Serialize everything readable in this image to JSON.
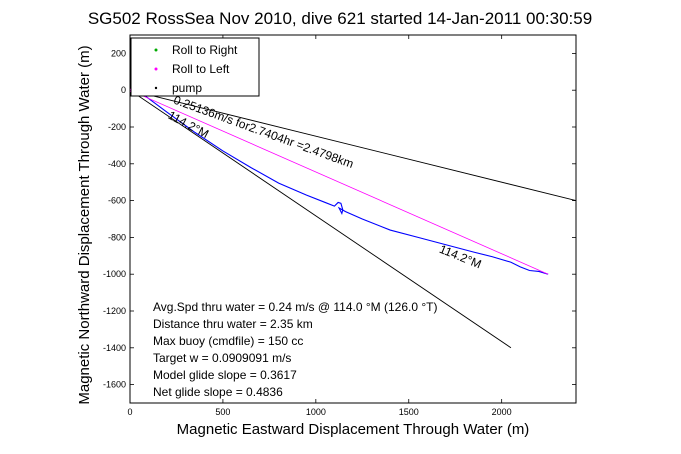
{
  "chart_data": {
    "type": "line",
    "title": "SG502 RossSea Nov 2010, dive 621 started 14-Jan-2011 00:30:59",
    "xlabel": "Magnetic Eastward Displacement Through Water (m)",
    "ylabel": "Magnetic Northward Displacement Through Water (m)",
    "xlim": [
      0,
      2400
    ],
    "ylim": [
      -1700,
      300
    ],
    "xticks": [
      0,
      500,
      1000,
      1500,
      2000
    ],
    "yticks": [
      200,
      0,
      -200,
      -400,
      -600,
      -800,
      -1000,
      -1200,
      -1400,
      -1600
    ],
    "grid": false,
    "legend_position": "top-left",
    "legend": [
      {
        "label": "Roll to Right",
        "color": "#00aa00",
        "marker": "dot"
      },
      {
        "label": "Roll to Left",
        "color": "#ff00ff",
        "marker": "dot"
      },
      {
        "label": "pump",
        "color": "#000000",
        "marker": "dot"
      }
    ],
    "series": [
      {
        "color": "#0000ff",
        "x": [
          0,
          80,
          200,
          350,
          500,
          650,
          800,
          950,
          1050,
          1100,
          1120,
          1135,
          1145,
          1140,
          1125,
          1160,
          1250,
          1400,
          1550,
          1700,
          1850,
          1950,
          2050,
          2100,
          2150,
          2200,
          2250
        ],
        "y": [
          0,
          -30,
          -120,
          -230,
          -330,
          -420,
          -505,
          -570,
          -610,
          -630,
          -610,
          -615,
          -650,
          -670,
          -640,
          -660,
          -700,
          -760,
          -800,
          -840,
          -880,
          -905,
          -935,
          -960,
          -980,
          -985,
          -1000
        ]
      },
      {
        "color": "#ff00ff",
        "x": [
          0,
          2250
        ],
        "y": [
          0,
          -1000
        ]
      }
    ],
    "bounds": [
      {
        "heading_label": "114.2°M",
        "x": [
          0,
          2400
        ],
        "y": [
          0,
          -600
        ]
      },
      {
        "x": [
          0,
          2050
        ],
        "y": [
          0,
          -1400
        ]
      }
    ],
    "annotations": [
      "0.25136m/s for2.7404hr =2.4798km",
      "114.2°M",
      "114.2°M"
    ],
    "notes": [
      "Avg.Spd thru water =  0.24 m/s @ 114.0    °M (126.0 °T)",
      "Distance thru water =  2.35 km",
      "Max buoy (cmdfile) = 150 cc",
      "Target w = 0.0909091 m/s",
      "Model glide slope = 0.3617",
      "Net glide slope = 0.4836"
    ]
  }
}
